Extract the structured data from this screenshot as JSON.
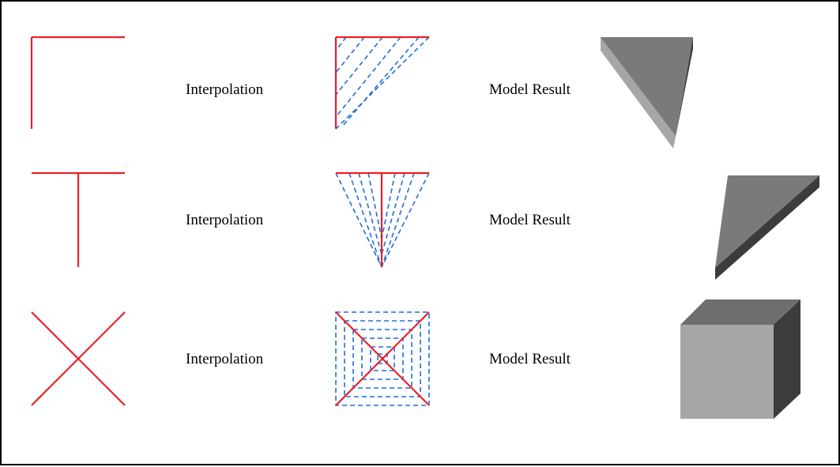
{
  "colors": {
    "guide_line": "#e8202a",
    "interpolation_line": "#1f6fd8",
    "face_front_light": "#a6a6a6",
    "face_mid": "#7a7a7a",
    "face_top": "#6e6e6e",
    "face_dark": "#3c3c3c",
    "border": "#000000"
  },
  "rows": [
    {
      "input_shape": "corner",
      "interpolation_label": "Interpolation",
      "result_label": "Model Result",
      "result_shape": "wedge"
    },
    {
      "input_shape": "t-junction",
      "interpolation_label": "Interpolation",
      "result_label": "Model Result",
      "result_shape": "slanted-wedge"
    },
    {
      "input_shape": "cross",
      "interpolation_label": "Interpolation",
      "result_label": "Model Result",
      "result_shape": "cube"
    }
  ]
}
